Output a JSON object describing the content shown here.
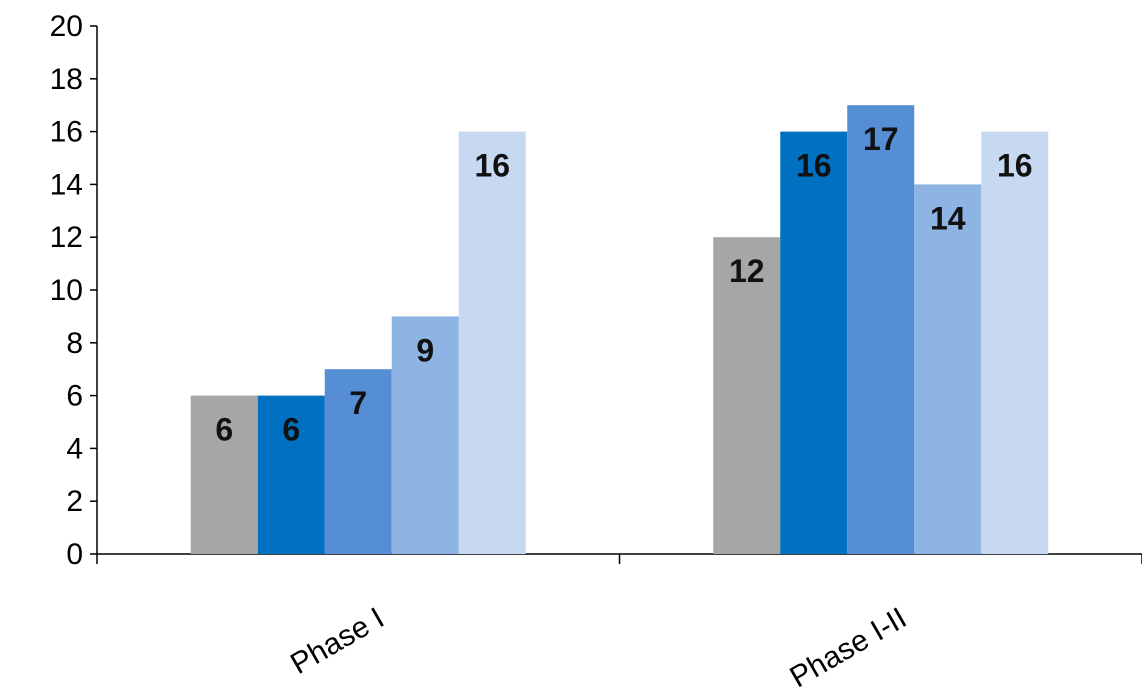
{
  "chart_data": {
    "type": "bar",
    "categories": [
      "Phase I",
      "Phase I-II"
    ],
    "series": [
      {
        "values": [
          6,
          12
        ],
        "color": "#a6a6a6"
      },
      {
        "values": [
          6,
          16
        ],
        "color": "#0070c0"
      },
      {
        "values": [
          7,
          17
        ],
        "color": "#558ed5"
      },
      {
        "values": [
          9,
          14
        ],
        "color": "#8db4e2"
      },
      {
        "values": [
          16,
          16
        ],
        "color": "#c6d9f1"
      }
    ],
    "ylim": [
      0,
      20
    ],
    "yticks": [
      0,
      2,
      4,
      6,
      8,
      10,
      12,
      14,
      16,
      18,
      20
    ],
    "grid": false,
    "legend": "none",
    "data_labels": true
  }
}
